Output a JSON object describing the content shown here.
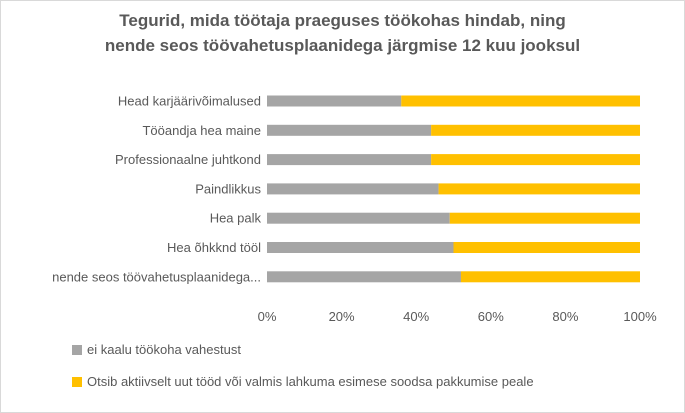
{
  "chart_data": {
    "type": "bar",
    "orientation": "horizontal",
    "stacked": "percent",
    "title_lines": [
      "Tegurid, mida töötaja praeguses töökohas hindab, ning",
      "nende seos töövahetusplaanidega järgmise 12 kuu jooksul"
    ],
    "categories": [
      "Head karjäärivõimalused",
      "Tööandja hea maine",
      "Professionaalne juhtkond",
      "Paindlikkus",
      "Hea palk",
      "Hea õhkknd tööl",
      "nende seos töövahetusplaanidega..."
    ],
    "series": [
      {
        "name": "ei kaalu töökoha vahestust",
        "color": "#a5a5a5",
        "values": [
          36,
          44,
          44,
          46,
          49,
          50,
          52
        ]
      },
      {
        "name": "Otsib aktiivselt uut tööd või valmis lahkuma esimese soodsa pakkumise peale",
        "color": "#ffc000",
        "values": [
          64,
          56,
          56,
          54,
          51,
          50,
          48
        ]
      }
    ],
    "x_ticks": [
      "0%",
      "20%",
      "40%",
      "60%",
      "80%",
      "100%"
    ],
    "xlim": [
      0,
      100
    ],
    "grid": false,
    "legend_position": "bottom-left"
  }
}
